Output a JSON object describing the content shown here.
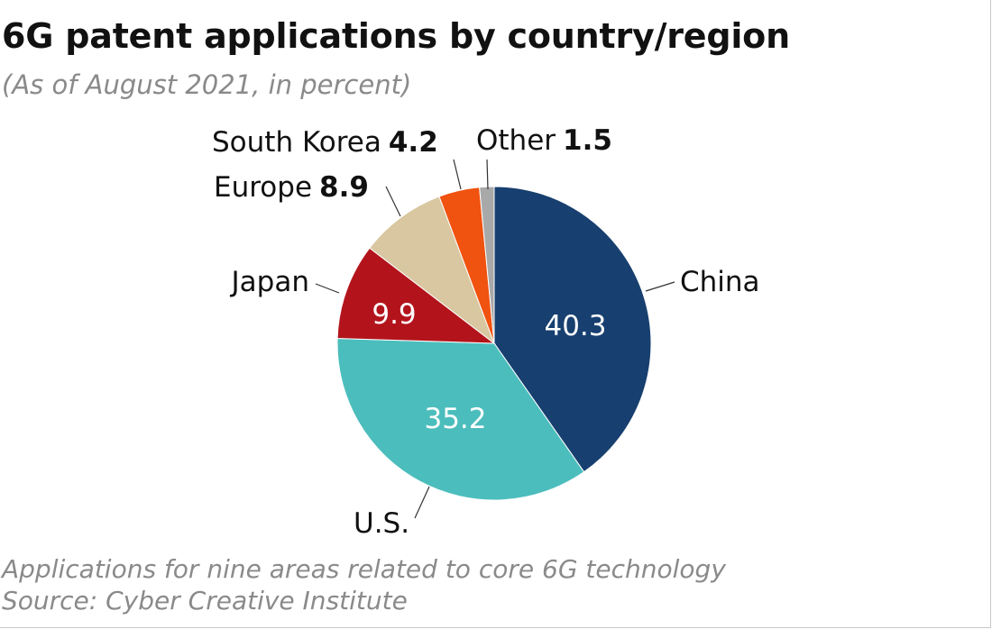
{
  "title": "6G patent applications by country/region",
  "subtitle": "(As of August 2021, in percent)",
  "note": "Applications for nine areas related to core 6G technology",
  "source": "Source: Cyber Creative Institute",
  "chart_data": {
    "type": "pie",
    "start": "12 o'clock",
    "direction": "clockwise",
    "slices": [
      {
        "label": "China",
        "value": 40.3,
        "value_text": "40.3",
        "color": "#173f6f",
        "value_inside": true
      },
      {
        "label": "U.S.",
        "value": 35.2,
        "value_text": "35.2",
        "color": "#4cbdbd",
        "value_inside": true
      },
      {
        "label": "Japan",
        "value": 9.9,
        "value_text": "9.9",
        "color": "#b3141c",
        "value_inside": true
      },
      {
        "label": "Europe",
        "value": 8.9,
        "value_text": "8.9",
        "color": "#d8c7a0",
        "value_inside": false
      },
      {
        "label": "South Korea",
        "value": 4.2,
        "value_text": "4.2",
        "color": "#f0520f",
        "value_inside": false
      },
      {
        "label": "Other",
        "value": 1.5,
        "value_text": "1.5",
        "color": "#a9a9a9",
        "value_inside": false
      }
    ]
  }
}
